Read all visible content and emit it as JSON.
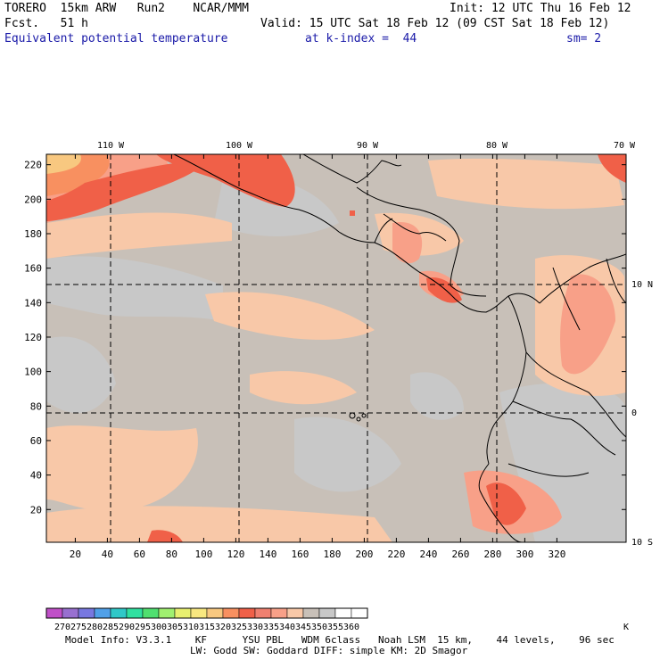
{
  "header": {
    "model": "TORERO  15km ARW   Run2    NCAR/MMM",
    "init": "Init: 12 UTC Thu 16 Feb 12",
    "fcst": "Fcst.   51 h",
    "valid": "Valid: 15 UTC Sat 18 Feb 12 (09 CST Sat 18 Feb 12)",
    "field": "Equivalent potential temperature",
    "level": "at k-index =  44",
    "smooth": "sm= 2"
  },
  "colors": {
    "background_field": "#c8c0b8",
    "grey_zone": "#c8c8c8",
    "peach": "#f8c8a8",
    "salmon": "#f8a088",
    "red": "#f06048",
    "orange": "#f89060",
    "yellow": "#f8c880",
    "coast": "#000000",
    "grid": "#000000"
  },
  "chart_data": {
    "type": "heatmap",
    "field_name": "Equivalent potential temperature",
    "x_ticks": [
      "20",
      "40",
      "60",
      "80",
      "100",
      "120",
      "140",
      "160",
      "180",
      "200",
      "220",
      "240",
      "260",
      "280",
      "300",
      "320"
    ],
    "y_ticks": [
      "20",
      "40",
      "60",
      "80",
      "100",
      "120",
      "140",
      "160",
      "180",
      "200",
      "220"
    ],
    "lon_labels": [
      "110 W",
      "100 W",
      "90 W",
      "80 W",
      "70 W"
    ],
    "lat_labels": [
      "10 N",
      "0",
      "10 S"
    ],
    "colorbar": {
      "labels": [
        "270",
        "275",
        "280",
        "285",
        "290",
        "295",
        "300",
        "305",
        "310",
        "315",
        "320",
        "325",
        "330",
        "335",
        "340",
        "345",
        "350",
        "355",
        "360"
      ],
      "unit": "K",
      "colors": [
        "#c050c8",
        "#9870d0",
        "#7878e0",
        "#50a0e8",
        "#30c8c8",
        "#30e0a0",
        "#50e070",
        "#a0f070",
        "#e8f070",
        "#f8e880",
        "#f8c880",
        "#f89060",
        "#f06048",
        "#f08070",
        "#f8a088",
        "#f8c8a8",
        "#c8c0b8",
        "#c8c8c8",
        "#ffffff",
        "#ffffff"
      ]
    }
  },
  "footer": {
    "line1": "Model Info: V3.3.1    KF      YSU PBL   WDM 6class   Noah LSM  15 km,    44 levels,    96 sec",
    "line2": "LW: Godd SW: Goddard DIFF: simple KM: 2D Smagor"
  }
}
